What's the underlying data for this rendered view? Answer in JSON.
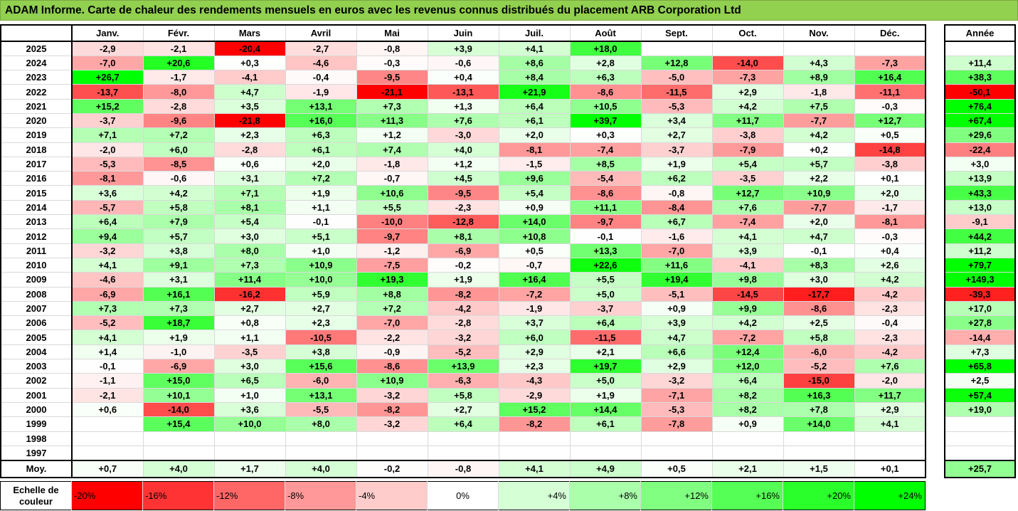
{
  "title": "ADAM Informe. Carte de chaleur des rendements mensuels en euros avec les revenus connus distribués du placement ARB Corporation Ltd",
  "chart_data": {
    "type": "heatmap",
    "title": "ADAM Informe. Carte de chaleur des rendements mensuels en euros avec les revenus connus distribués du placement ARB Corporation Ltd",
    "months": [
      "Janv.",
      "Févr.",
      "Mars",
      "Avril",
      "Mai",
      "Juin",
      "Juil.",
      "Août",
      "Sept.",
      "Oct.",
      "Nov.",
      "Déc."
    ],
    "year_col_label": "Année",
    "rows": [
      {
        "year": "2025",
        "m": [
          "-2,9",
          "-2,1",
          "-20,4",
          "-2,7",
          "-0,8",
          "+3,9",
          "+4,1",
          "+18,0",
          "",
          "",
          "",
          ""
        ],
        "y": ""
      },
      {
        "year": "2024",
        "m": [
          "-7,0",
          "+20,6",
          "+0,3",
          "-4,6",
          "-0,3",
          "-0,6",
          "+8,6",
          "+2,8",
          "+12,8",
          "-14,0",
          "+4,3",
          "-7,3"
        ],
        "y": "+11,4"
      },
      {
        "year": "2023",
        "m": [
          "+26,7",
          "-1,7",
          "-4,1",
          "-0,4",
          "-9,5",
          "+0,4",
          "+8,4",
          "+6,3",
          "-5,0",
          "-7,3",
          "+8,9",
          "+16,4"
        ],
        "y": "+38,3"
      },
      {
        "year": "2022",
        "m": [
          "-13,7",
          "-8,0",
          "+4,7",
          "-1,9",
          "-21,1",
          "-13,1",
          "+21,9",
          "-8,6",
          "-11,5",
          "+2,9",
          "-1,8",
          "-11,1"
        ],
        "y": "-50,1"
      },
      {
        "year": "2021",
        "m": [
          "+15,2",
          "-2,8",
          "+3,5",
          "+13,1",
          "+7,3",
          "+1,3",
          "+6,4",
          "+10,5",
          "-5,3",
          "+4,2",
          "+7,5",
          "-0,3"
        ],
        "y": "+76,4"
      },
      {
        "year": "2020",
        "m": [
          "-3,7",
          "-9,6",
          "-21,8",
          "+16,0",
          "+11,3",
          "+7,6",
          "+6,1",
          "+39,7",
          "+3,4",
          "+11,7",
          "-7,7",
          "+12,7"
        ],
        "y": "+67,4"
      },
      {
        "year": "2019",
        "m": [
          "+7,1",
          "+7,2",
          "+2,3",
          "+6,3",
          "+1,2",
          "-3,0",
          "+2,0",
          "+0,3",
          "+2,7",
          "-3,8",
          "+4,2",
          "+0,5"
        ],
        "y": "+29,6"
      },
      {
        "year": "2018",
        "m": [
          "-2,0",
          "+6,0",
          "-2,8",
          "+6,1",
          "+7,4",
          "+4,0",
          "-8,1",
          "-7,4",
          "-3,7",
          "-7,9",
          "+0,2",
          "-14,8"
        ],
        "y": "-22,4"
      },
      {
        "year": "2017",
        "m": [
          "-5,3",
          "-8,5",
          "+0,6",
          "+2,0",
          "-1,8",
          "+1,2",
          "-1,5",
          "+8,5",
          "+1,9",
          "+5,4",
          "+5,7",
          "-3,8"
        ],
        "y": "+3,0"
      },
      {
        "year": "2016",
        "m": [
          "-8,1",
          "-0,6",
          "+3,1",
          "+7,2",
          "-0,7",
          "+4,5",
          "+9,6",
          "-5,4",
          "+6,2",
          "-3,5",
          "+2,2",
          "+0,1"
        ],
        "y": "+13,9"
      },
      {
        "year": "2015",
        "m": [
          "+3,6",
          "+4,2",
          "+7,1",
          "+1,9",
          "+10,6",
          "-9,5",
          "+5,4",
          "-8,6",
          "-0,8",
          "+12,7",
          "+10,9",
          "+2,0"
        ],
        "y": "+43,3"
      },
      {
        "year": "2014",
        "m": [
          "-5,7",
          "+5,8",
          "+8,1",
          "+1,1",
          "+5,5",
          "-2,3",
          "+0,9",
          "+11,1",
          "-8,4",
          "+7,6",
          "-7,7",
          "-1,7"
        ],
        "y": "+13,0"
      },
      {
        "year": "2013",
        "m": [
          "+6,4",
          "+7,9",
          "+5,4",
          "-0,1",
          "-10,0",
          "-12,8",
          "+14,0",
          "-9,7",
          "+6,7",
          "-7,4",
          "+2,0",
          "-8,1"
        ],
        "y": "-9,1"
      },
      {
        "year": "2012",
        "m": [
          "+9,4",
          "+5,7",
          "+3,0",
          "+5,1",
          "-9,7",
          "+8,1",
          "+10,8",
          "-0,1",
          "-1,6",
          "+4,1",
          "+4,7",
          "-0,3"
        ],
        "y": "+44,2"
      },
      {
        "year": "2011",
        "m": [
          "-3,2",
          "+3,8",
          "+8,0",
          "+1,0",
          "-1,2",
          "-6,9",
          "+0,5",
          "+13,3",
          "-7,0",
          "+3,9",
          "-0,1",
          "+0,4"
        ],
        "y": "+11,2"
      },
      {
        "year": "2010",
        "m": [
          "+4,1",
          "+9,1",
          "+7,3",
          "+10,9",
          "-7,5",
          "-0,2",
          "-0,7",
          "+22,6",
          "+11,6",
          "-4,1",
          "+8,3",
          "+2,6"
        ],
        "y": "+79,7"
      },
      {
        "year": "2009",
        "m": [
          "-4,6",
          "+3,1",
          "+11,4",
          "+10,0",
          "+19,3",
          "+1,9",
          "+16,4",
          "+5,5",
          "+19,4",
          "+9,8",
          "+3,0",
          "+4,2"
        ],
        "y": "+149,3"
      },
      {
        "year": "2008",
        "m": [
          "-6,9",
          "+16,1",
          "-16,2",
          "+5,9",
          "+8,8",
          "-8,2",
          "-7,2",
          "+5,0",
          "-5,1",
          "-14,5",
          "-17,7",
          "-4,2"
        ],
        "y": "-39,3"
      },
      {
        "year": "2007",
        "m": [
          "+7,3",
          "+7,3",
          "+2,7",
          "+2,7",
          "+7,2",
          "-4,2",
          "-1,9",
          "-3,7",
          "+0,9",
          "+9,9",
          "-8,6",
          "-2,3"
        ],
        "y": "+17,0"
      },
      {
        "year": "2006",
        "m": [
          "-5,2",
          "+18,7",
          "+0,8",
          "+2,3",
          "-7,0",
          "-2,8",
          "+3,7",
          "+6,4",
          "+3,9",
          "+4,2",
          "+2,5",
          "-0,4"
        ],
        "y": "+27,8"
      },
      {
        "year": "2005",
        "m": [
          "+4,1",
          "+1,9",
          "+1,1",
          "-10,5",
          "-2,2",
          "-3,2",
          "+6,0",
          "-11,5",
          "+4,7",
          "-7,2",
          "+5,8",
          "-2,3"
        ],
        "y": "-14,4"
      },
      {
        "year": "2004",
        "m": [
          "+1,4",
          "-1,0",
          "-3,5",
          "+3,8",
          "-0,9",
          "-5,2",
          "+2,9",
          "+2,1",
          "+6,6",
          "+12,4",
          "-6,0",
          "-4,2"
        ],
        "y": "+7,3"
      },
      {
        "year": "2003",
        "m": [
          "-0,1",
          "-6,9",
          "+3,0",
          "+15,6",
          "-8,6",
          "+13,9",
          "+2,3",
          "+19,7",
          "+2,9",
          "+12,0",
          "-5,2",
          "+7,6"
        ],
        "y": "+65,8"
      },
      {
        "year": "2002",
        "m": [
          "-1,1",
          "+15,0",
          "+6,5",
          "-6,0",
          "+10,9",
          "-6,3",
          "-4,3",
          "+5,0",
          "-3,2",
          "+6,4",
          "-15,0",
          "-2,0"
        ],
        "y": "+2,5"
      },
      {
        "year": "2001",
        "m": [
          "-2,1",
          "+10,1",
          "+1,0",
          "+13,1",
          "-3,2",
          "+5,8",
          "-2,9",
          "+1,9",
          "-7,1",
          "+8,2",
          "+16,3",
          "+11,7"
        ],
        "y": "+57,4"
      },
      {
        "year": "2000",
        "m": [
          "+0,6",
          "-14,0",
          "+3,6",
          "-5,5",
          "-8,2",
          "+2,7",
          "+15,2",
          "+14,4",
          "-5,3",
          "+8,2",
          "+7,8",
          "+2,9"
        ],
        "y": "+19,0"
      },
      {
        "year": "1999",
        "m": [
          "",
          "+15,4",
          "+10,0",
          "+8,0",
          "-3,2",
          "+6,4",
          "-8,2",
          "+6,1",
          "-7,8",
          "+0,9",
          "+14,0",
          "+4,1"
        ],
        "y": ""
      },
      {
        "year": "1998",
        "m": [
          "",
          "",
          "",
          "",
          "",
          "",
          "",
          "",
          "",
          "",
          "",
          ""
        ],
        "y": ""
      },
      {
        "year": "1997",
        "m": [
          "",
          "",
          "",
          "",
          "",
          "",
          "",
          "",
          "",
          "",
          "",
          ""
        ],
        "y": ""
      }
    ],
    "average": {
      "label": "Moy.",
      "m": [
        "+0,7",
        "+4,0",
        "+1,7",
        "+4,0",
        "-0,2",
        "-0,8",
        "+4,1",
        "+4,9",
        "+0,5",
        "+2,1",
        "+1,5",
        "+0,1"
      ],
      "y": "+25,7"
    },
    "scale": {
      "label": "Echelle de couleur",
      "steps": [
        "-20%",
        "-16%",
        "-12%",
        "-8%",
        "-4%",
        "0%",
        "+4%",
        "+8%",
        "+12%",
        "+16%",
        "+20%",
        "+24%"
      ]
    }
  },
  "colors": {
    "title_bg": "#92d050",
    "red": "#ff0000",
    "green": "#00ff00",
    "white": "#ffffff"
  }
}
